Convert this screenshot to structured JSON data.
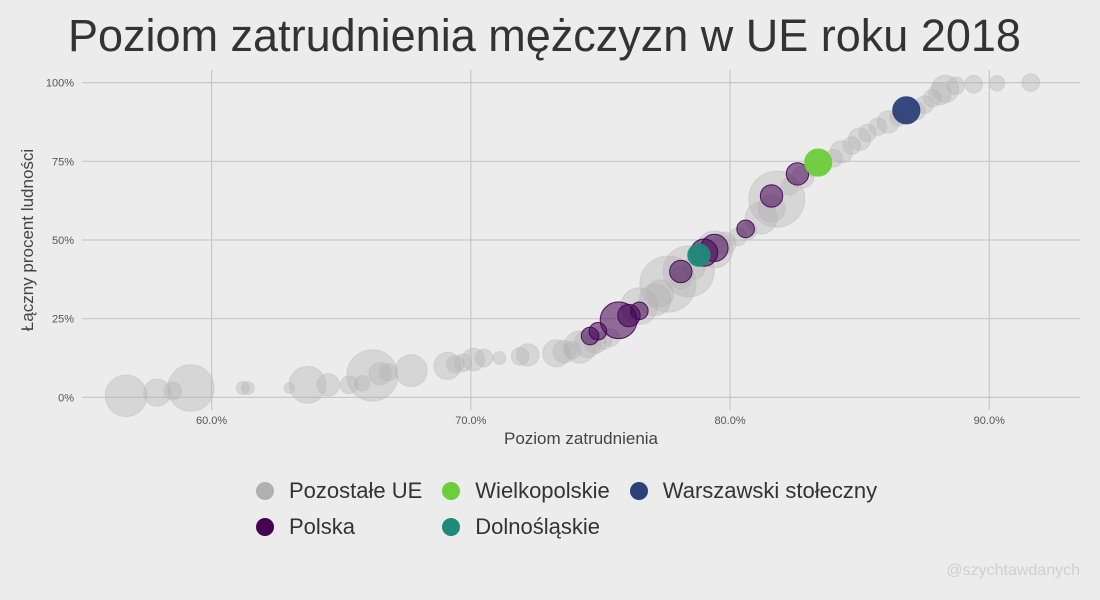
{
  "chart_data": {
    "type": "scatter",
    "title": "Poziom zatrudnienia mężczyzn w UE roku 2018",
    "xlabel": "Poziom zatrudnienia",
    "ylabel": "Łączny procent ludności",
    "xlim": [
      55,
      93.5
    ],
    "ylim": [
      -4,
      104
    ],
    "x_ticks": [
      60,
      70,
      80,
      90
    ],
    "x_tick_labels": [
      "60.0%",
      "70.0%",
      "80.0%",
      "90.0%"
    ],
    "y_ticks": [
      0,
      25,
      50,
      75,
      100
    ],
    "y_tick_labels": [
      "0%",
      "25%",
      "50%",
      "75%",
      "100%"
    ],
    "grid": true,
    "legend_position": "bottom",
    "series": [
      {
        "name": "Pozostałe UE",
        "color": "#b0b0b0",
        "points": [
          {
            "x": 56.7,
            "y": 0.5,
            "s": 7
          },
          {
            "x": 57.9,
            "y": 1.5,
            "s": 4
          },
          {
            "x": 58.5,
            "y": 2,
            "s": 2
          },
          {
            "x": 59.2,
            "y": 3,
            "s": 8
          },
          {
            "x": 61.2,
            "y": 3,
            "s": 1
          },
          {
            "x": 61.4,
            "y": 3,
            "s": 1
          },
          {
            "x": 63,
            "y": 3,
            "s": 0.5
          },
          {
            "x": 63.7,
            "y": 4,
            "s": 6
          },
          {
            "x": 64.5,
            "y": 4,
            "s": 3
          },
          {
            "x": 65.3,
            "y": 4,
            "s": 2
          },
          {
            "x": 65.8,
            "y": 4.5,
            "s": 1.5
          },
          {
            "x": 66.2,
            "y": 7,
            "s": 9
          },
          {
            "x": 66.5,
            "y": 7.5,
            "s": 3
          },
          {
            "x": 66.8,
            "y": 8,
            "s": 2
          },
          {
            "x": 67.7,
            "y": 8.5,
            "s": 5
          },
          {
            "x": 69.1,
            "y": 10,
            "s": 4
          },
          {
            "x": 69.4,
            "y": 10.5,
            "s": 2
          },
          {
            "x": 69.7,
            "y": 11,
            "s": 2
          },
          {
            "x": 70.1,
            "y": 12,
            "s": 3
          },
          {
            "x": 70.5,
            "y": 12.5,
            "s": 2
          },
          {
            "x": 71.1,
            "y": 12.5,
            "s": 1
          },
          {
            "x": 71.9,
            "y": 13,
            "s": 2
          },
          {
            "x": 72.2,
            "y": 13.5,
            "s": 3
          },
          {
            "x": 73.3,
            "y": 14,
            "s": 4
          },
          {
            "x": 73.6,
            "y": 14.5,
            "s": 3
          },
          {
            "x": 73.9,
            "y": 15,
            "s": 2
          },
          {
            "x": 74.2,
            "y": 16,
            "s": 5
          },
          {
            "x": 74.5,
            "y": 17,
            "s": 4
          },
          {
            "x": 74.8,
            "y": 17.5,
            "s": 3
          },
          {
            "x": 75.1,
            "y": 18,
            "s": 2
          },
          {
            "x": 75.4,
            "y": 19,
            "s": 2
          },
          {
            "x": 76.5,
            "y": 29,
            "s": 6
          },
          {
            "x": 77.1,
            "y": 31,
            "s": 5
          },
          {
            "x": 77.3,
            "y": 33,
            "s": 4
          },
          {
            "x": 77.6,
            "y": 36,
            "s": 10
          },
          {
            "x": 78.1,
            "y": 38,
            "s": 3
          },
          {
            "x": 78.4,
            "y": 40,
            "s": 9
          },
          {
            "x": 78.6,
            "y": 41,
            "s": 3
          },
          {
            "x": 79.4,
            "y": 47,
            "s": 6
          },
          {
            "x": 79.8,
            "y": 49,
            "s": 3
          },
          {
            "x": 80.3,
            "y": 51,
            "s": 2
          },
          {
            "x": 80.7,
            "y": 53,
            "s": 2
          },
          {
            "x": 81.2,
            "y": 57,
            "s": 5
          },
          {
            "x": 81.6,
            "y": 60,
            "s": 4
          },
          {
            "x": 81.8,
            "y": 63,
            "s": 10
          },
          {
            "x": 82.3,
            "y": 67,
            "s": 2
          },
          {
            "x": 82.8,
            "y": 70,
            "s": 3
          },
          {
            "x": 83.2,
            "y": 73,
            "s": 2
          },
          {
            "x": 84,
            "y": 76,
            "s": 2
          },
          {
            "x": 84.3,
            "y": 78,
            "s": 3
          },
          {
            "x": 84.7,
            "y": 80,
            "s": 2
          },
          {
            "x": 85,
            "y": 82,
            "s": 3
          },
          {
            "x": 85.3,
            "y": 84,
            "s": 2
          },
          {
            "x": 85.7,
            "y": 86,
            "s": 2
          },
          {
            "x": 86.1,
            "y": 87.5,
            "s": 3
          },
          {
            "x": 86.5,
            "y": 89,
            "s": 2
          },
          {
            "x": 87.2,
            "y": 91,
            "s": 2
          },
          {
            "x": 87.5,
            "y": 93,
            "s": 2
          },
          {
            "x": 87.8,
            "y": 95,
            "s": 2
          },
          {
            "x": 88.1,
            "y": 96.5,
            "s": 3
          },
          {
            "x": 88.3,
            "y": 98,
            "s": 4
          },
          {
            "x": 88.7,
            "y": 99,
            "s": 2
          },
          {
            "x": 89.4,
            "y": 99.5,
            "s": 2
          },
          {
            "x": 90.3,
            "y": 99.8,
            "s": 1.5
          },
          {
            "x": 91.6,
            "y": 100,
            "s": 2
          }
        ]
      },
      {
        "name": "Polska",
        "color": "#440154",
        "points": [
          {
            "x": 74.6,
            "y": 19.5,
            "s": 2
          },
          {
            "x": 74.9,
            "y": 21,
            "s": 2
          },
          {
            "x": 75.7,
            "y": 24.5,
            "s": 6
          },
          {
            "x": 76.1,
            "y": 26,
            "s": 3
          },
          {
            "x": 76.5,
            "y": 27.5,
            "s": 2
          },
          {
            "x": 78.1,
            "y": 40,
            "s": 3
          },
          {
            "x": 79,
            "y": 46,
            "s": 4
          },
          {
            "x": 79.4,
            "y": 47.5,
            "s": 4
          },
          {
            "x": 80.6,
            "y": 53.5,
            "s": 2
          },
          {
            "x": 81.6,
            "y": 64,
            "s": 3
          },
          {
            "x": 82.6,
            "y": 71,
            "s": 3
          }
        ]
      },
      {
        "name": "Wielkopolskie",
        "color": "#6cce3a",
        "points": [
          {
            "x": 83.4,
            "y": 74.6,
            "s": 4
          }
        ]
      },
      {
        "name": "Dolnośląskie",
        "color": "#1f8a78",
        "points": [
          {
            "x": 78.8,
            "y": 45.2,
            "s": 3
          }
        ]
      },
      {
        "name": "Warszawski stołeczny",
        "color": "#2c4079",
        "points": [
          {
            "x": 86.8,
            "y": 91.2,
            "s": 4
          }
        ]
      }
    ]
  },
  "legend": {
    "items": [
      {
        "label": "Pozostałe UE",
        "color": "#b0b0b0"
      },
      {
        "label": "Wielkopolskie",
        "color": "#6cce3a"
      },
      {
        "label": "Warszawski stołeczny",
        "color": "#2c4079"
      },
      {
        "label": "Polska",
        "color": "#440154"
      },
      {
        "label": "Dolnośląskie",
        "color": "#1f8a78"
      }
    ]
  },
  "watermark": "@szychtawdanych"
}
